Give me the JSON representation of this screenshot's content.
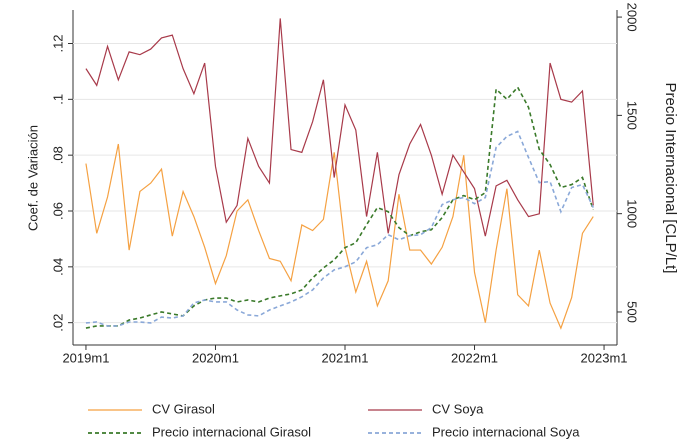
{
  "chart_data": {
    "type": "line",
    "y_label": "Coef. de Variación",
    "y2_label": "Precio Internacional [CLP/Lt]",
    "x": [
      708,
      709,
      710,
      711,
      712,
      713,
      714,
      715,
      716,
      717,
      718,
      719,
      720,
      721,
      722,
      723,
      724,
      725,
      726,
      727,
      728,
      729,
      730,
      731,
      732,
      733,
      734,
      735,
      736,
      737,
      738,
      739,
      740,
      741,
      742,
      743,
      744,
      745,
      746,
      747,
      748,
      749,
      750,
      751,
      752,
      753,
      754,
      755
    ],
    "xlim": [
      706.8,
      757.2
    ],
    "xticks": [
      {
        "value": 708,
        "label": "2019m1"
      },
      {
        "value": 720,
        "label": "2020m1"
      },
      {
        "value": 732,
        "label": "2021m1"
      },
      {
        "value": 744,
        "label": "2022m1"
      },
      {
        "value": 756,
        "label": "2023m1"
      }
    ],
    "ylim": [
      0.012,
      0.132
    ],
    "yticks": [
      {
        "value": 0.02,
        "label": ".02"
      },
      {
        "value": 0.04,
        "label": ".04"
      },
      {
        "value": 0.06,
        "label": ".06"
      },
      {
        "value": 0.08,
        "label": ".08"
      },
      {
        "value": 0.1,
        "label": ".1"
      },
      {
        "value": 0.12,
        "label": ".12"
      }
    ],
    "y2lim": [
      332,
      2036
    ],
    "y2ticks": [
      500,
      1000,
      1500,
      2000
    ],
    "grid": true,
    "legend": "bottom",
    "series": [
      {
        "name": "CV Girasol",
        "color": "#f5a142",
        "dash": false,
        "values": [
          0.077,
          0.052,
          0.065,
          0.084,
          0.046,
          0.067,
          0.07,
          0.075,
          0.051,
          0.067,
          0.058,
          0.047,
          0.034,
          0.044,
          0.06,
          0.064,
          0.053,
          0.043,
          0.042,
          0.035,
          0.055,
          0.053,
          0.057,
          0.081,
          0.047,
          0.031,
          0.042,
          0.026,
          0.035,
          0.066,
          0.046,
          0.046,
          0.041,
          0.047,
          0.058,
          0.08,
          0.038,
          0.02,
          0.046,
          0.068,
          0.03,
          0.026,
          0.046,
          0.027,
          0.018,
          0.029,
          0.052,
          0.058
        ]
      },
      {
        "name": "CV Soya",
        "color": "#a83a4a",
        "dash": false,
        "values": [
          0.111,
          0.105,
          0.119,
          0.107,
          0.117,
          0.116,
          0.118,
          0.122,
          0.123,
          0.111,
          0.102,
          0.113,
          0.076,
          0.056,
          0.062,
          0.086,
          0.076,
          0.07,
          0.129,
          0.082,
          0.081,
          0.092,
          0.107,
          0.072,
          0.098,
          0.089,
          0.058,
          0.081,
          0.052,
          0.073,
          0.084,
          0.091,
          0.08,
          0.066,
          0.08,
          0.074,
          0.068,
          0.051,
          0.069,
          0.071,
          0.064,
          0.058,
          0.059,
          0.113,
          0.1,
          0.099,
          0.103,
          0.062
        ]
      },
      {
        "name": "Precio internacional Girasol",
        "color": "#3a7a2a",
        "dash": true,
        "axis": "y2",
        "values": [
          418,
          429,
          429,
          429,
          459,
          469,
          485,
          500,
          490,
          480,
          531,
          561,
          571,
          571,
          551,
          561,
          551,
          571,
          582,
          592,
          612,
          673,
          724,
          765,
          827,
          852,
          944,
          1031,
          1010,
          929,
          888,
          908,
          918,
          980,
          1071,
          1092,
          1071,
          1107,
          1633,
          1582,
          1643,
          1541,
          1327,
          1250,
          1133,
          1148,
          1184,
          1020
        ]
      },
      {
        "name": "Precio internacional Soya",
        "color": "#8aa8d8",
        "dash": true,
        "axis": "y2",
        "values": [
          444,
          449,
          429,
          429,
          449,
          449,
          444,
          474,
          469,
          480,
          546,
          561,
          551,
          551,
          510,
          485,
          480,
          510,
          531,
          551,
          577,
          612,
          673,
          714,
          730,
          755,
          827,
          842,
          893,
          867,
          888,
          893,
          929,
          1046,
          1071,
          1082,
          1051,
          1082,
          1337,
          1393,
          1418,
          1286,
          1158,
          1163,
          1010,
          1133,
          1148,
          1031
        ]
      }
    ]
  }
}
